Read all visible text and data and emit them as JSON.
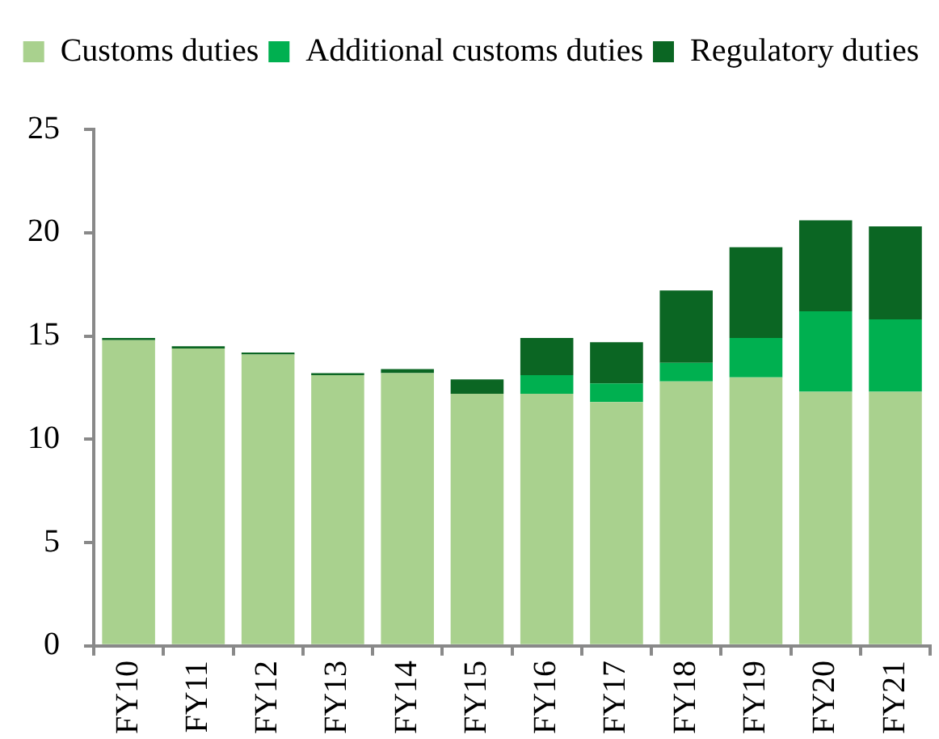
{
  "chart_data": {
    "type": "bar",
    "stacked": true,
    "categories": [
      "FY10",
      "FY11",
      "FY12",
      "FY13",
      "FY14",
      "FY15",
      "FY16",
      "FY17",
      "FY18",
      "FY19",
      "FY20",
      "FY21"
    ],
    "series": [
      {
        "name": "Customs duties",
        "color": "#a9d18e",
        "values": [
          14.8,
          14.4,
          14.1,
          13.1,
          13.2,
          12.2,
          12.2,
          11.8,
          12.8,
          13.0,
          12.3,
          12.3
        ]
      },
      {
        "name": "Additional customs duties",
        "color": "#00b050",
        "values": [
          0,
          0,
          0,
          0,
          0,
          0,
          0.9,
          0.9,
          0.9,
          1.9,
          3.9,
          3.5
        ]
      },
      {
        "name": "Regulatory duties",
        "color": "#0b6623",
        "values": [
          0.1,
          0.1,
          0.1,
          0.1,
          0.2,
          0.7,
          1.8,
          2.0,
          3.5,
          4.4,
          4.4,
          4.5
        ]
      }
    ],
    "ylim": [
      0,
      25
    ],
    "yticks": [
      0,
      5,
      10,
      15,
      20,
      25
    ],
    "grid": false,
    "legend": "top"
  }
}
